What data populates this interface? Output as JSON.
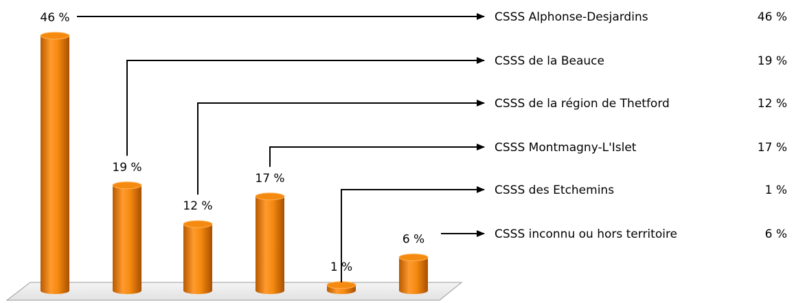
{
  "chart_data": {
    "type": "bar",
    "style": "3d-cylinder",
    "bar_color": "#f58a10",
    "categories": [
      "CSSS Alphonse-Desjardins",
      "CSSS de la Beauce",
      "CSSS de la région de Thetford",
      "CSSS Montmagny-L'Islet",
      "CSSS des Etchemins",
      "CSSS inconnu ou hors territoire"
    ],
    "values": [
      46,
      19,
      12,
      17,
      1,
      6
    ],
    "data_labels": [
      "46 %",
      "19 %",
      "12 %",
      "17 %",
      "1 %",
      "6 %"
    ],
    "legend_values": [
      "46 %",
      "19 %",
      "12 %",
      "17 %",
      "1 %",
      "6 %"
    ],
    "ylim": [
      0,
      46
    ],
    "grid": false,
    "legend_placement": "right",
    "title": "",
    "xlabel": "",
    "ylabel": ""
  }
}
